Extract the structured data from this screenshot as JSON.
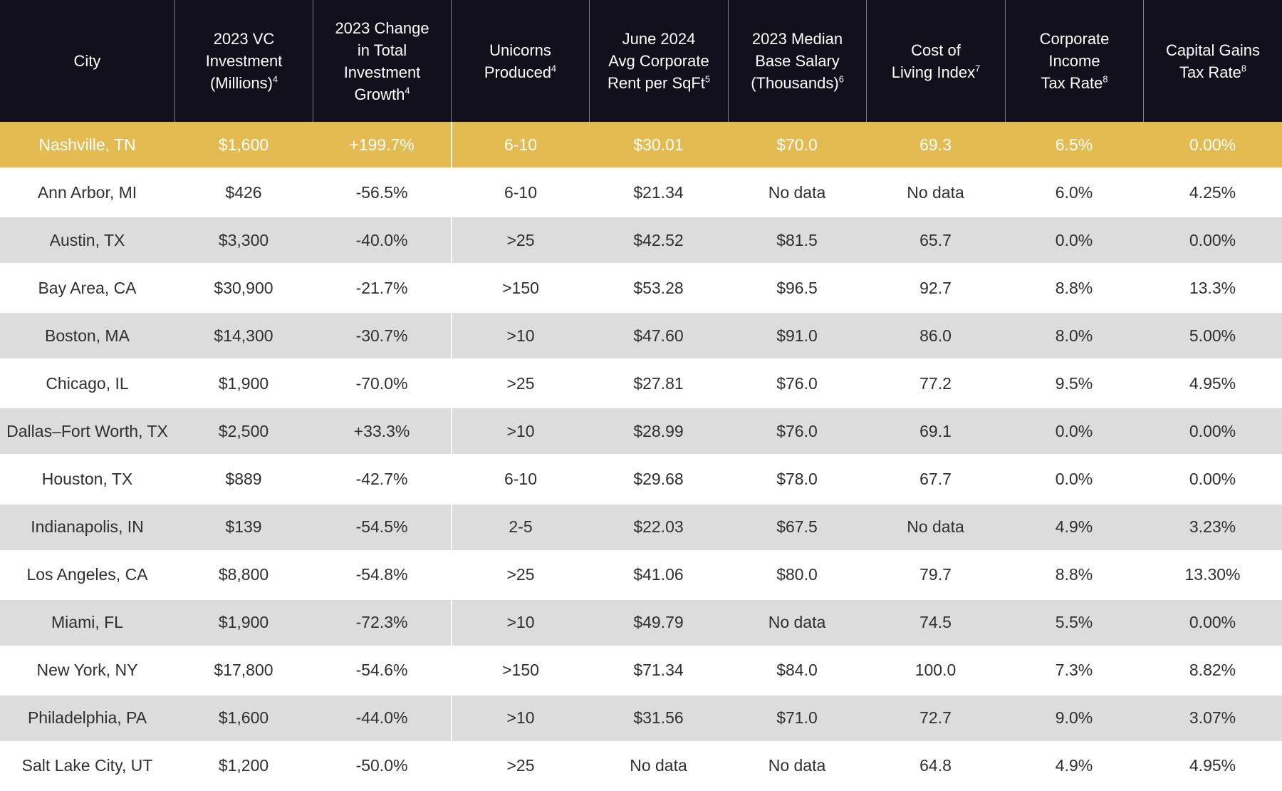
{
  "colors": {
    "header_bg": "#12101d",
    "highlight_gold": "#e4bb51",
    "zebra_gray": "#dcdcdc",
    "body_text": "#2f2f2f",
    "header_text": "#ffffff"
  },
  "table": {
    "columns": [
      {
        "id": "city",
        "label_lines": [
          "City"
        ],
        "sup": null
      },
      {
        "id": "vc-investment",
        "label_lines": [
          "2023 VC",
          "Investment",
          "(Millions)"
        ],
        "sup": "4"
      },
      {
        "id": "investment-growth",
        "label_lines": [
          "2023 Change",
          "in Total",
          "Investment",
          "Growth"
        ],
        "sup": "4"
      },
      {
        "id": "unicorns",
        "label_lines": [
          "Unicorns",
          "Produced"
        ],
        "sup": "4"
      },
      {
        "id": "corporate-rent",
        "label_lines": [
          "June 2024",
          "Avg Corporate",
          "Rent per SqFt"
        ],
        "sup": "5"
      },
      {
        "id": "median-salary",
        "label_lines": [
          "2023 Median",
          "Base Salary",
          "(Thousands)"
        ],
        "sup": "6"
      },
      {
        "id": "cost-of-living",
        "label_lines": [
          "Cost of",
          "Living Index"
        ],
        "sup": "7"
      },
      {
        "id": "corporate-tax",
        "label_lines": [
          "Corporate",
          "Income",
          "Tax Rate"
        ],
        "sup": "8"
      },
      {
        "id": "capital-gains-tax",
        "label_lines": [
          "Capital Gains",
          "Tax Rate"
        ],
        "sup": "8"
      }
    ],
    "rows": [
      {
        "city": "Nashville, TN",
        "highlight": true,
        "values": [
          "$1,600",
          "+199.7%",
          "6-10",
          "$30.01",
          "$70.0",
          "69.3",
          "6.5%",
          "0.00%"
        ]
      },
      {
        "city": "Ann Arbor, MI",
        "highlight": false,
        "values": [
          "$426",
          "-56.5%",
          "6-10",
          "$21.34",
          "No data",
          "No data",
          "6.0%",
          "4.25%"
        ]
      },
      {
        "city": "Austin, TX",
        "highlight": false,
        "values": [
          "$3,300",
          "-40.0%",
          ">25",
          "$42.52",
          "$81.5",
          "65.7",
          "0.0%",
          "0.00%"
        ]
      },
      {
        "city": "Bay Area, CA",
        "highlight": false,
        "values": [
          "$30,900",
          "-21.7%",
          ">150",
          "$53.28",
          "$96.5",
          "92.7",
          "8.8%",
          "13.3%"
        ]
      },
      {
        "city": "Boston, MA",
        "highlight": false,
        "values": [
          "$14,300",
          "-30.7%",
          ">10",
          "$47.60",
          "$91.0",
          "86.0",
          "8.0%",
          "5.00%"
        ]
      },
      {
        "city": "Chicago, IL",
        "highlight": false,
        "values": [
          "$1,900",
          "-70.0%",
          ">25",
          "$27.81",
          "$76.0",
          "77.2",
          "9.5%",
          "4.95%"
        ]
      },
      {
        "city": "Dallas–Fort Worth, TX",
        "highlight": false,
        "values": [
          "$2,500",
          "+33.3%",
          ">10",
          "$28.99",
          "$76.0",
          "69.1",
          "0.0%",
          "0.00%"
        ]
      },
      {
        "city": "Houston, TX",
        "highlight": false,
        "values": [
          "$889",
          "-42.7%",
          "6-10",
          "$29.68",
          "$78.0",
          "67.7",
          "0.0%",
          "0.00%"
        ]
      },
      {
        "city": "Indianapolis, IN",
        "highlight": false,
        "values": [
          "$139",
          "-54.5%",
          "2-5",
          "$22.03",
          "$67.5",
          "No data",
          "4.9%",
          "3.23%"
        ]
      },
      {
        "city": "Los Angeles, CA",
        "highlight": false,
        "values": [
          "$8,800",
          "-54.8%",
          ">25",
          "$41.06",
          "$80.0",
          "79.7",
          "8.8%",
          "13.30%"
        ]
      },
      {
        "city": "Miami, FL",
        "highlight": false,
        "values": [
          "$1,900",
          "-72.3%",
          ">10",
          "$49.79",
          "No data",
          "74.5",
          "5.5%",
          "0.00%"
        ]
      },
      {
        "city": "New York, NY",
        "highlight": false,
        "values": [
          "$17,800",
          "-54.6%",
          ">150",
          "$71.34",
          "$84.0",
          "100.0",
          "7.3%",
          "8.82%"
        ]
      },
      {
        "city": "Philadelphia, PA",
        "highlight": false,
        "values": [
          "$1,600",
          "-44.0%",
          ">10",
          "$31.56",
          "$71.0",
          "72.7",
          "9.0%",
          "3.07%"
        ]
      },
      {
        "city": "Salt Lake City, UT",
        "highlight": false,
        "values": [
          "$1,200",
          "-50.0%",
          ">25",
          "No data",
          "No data",
          "64.8",
          "4.9%",
          "4.95%"
        ]
      }
    ]
  }
}
